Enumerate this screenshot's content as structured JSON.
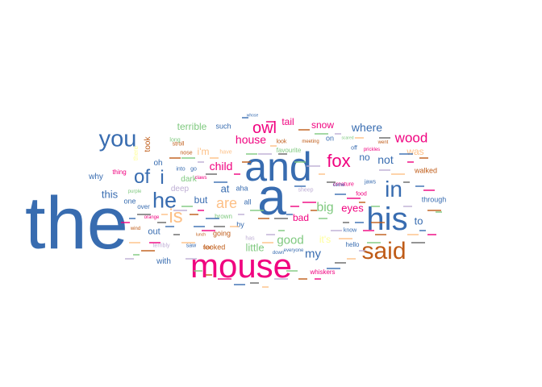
{
  "palette": {
    "blue": "#386cb0",
    "pink": "#f0027f",
    "brown": "#bf5b17",
    "green": "#7fc97f",
    "lavender": "#beaed4",
    "peach": "#fdc086",
    "yellow": "#ffff99",
    "grey": "#666666"
  },
  "words": [
    {
      "text": "the",
      "color": "blue"
    },
    {
      "text": "and",
      "color": "blue"
    },
    {
      "text": "a",
      "color": "blue"
    },
    {
      "text": "mouse",
      "color": "pink"
    },
    {
      "text": "his",
      "color": "blue"
    },
    {
      "text": "said",
      "color": "brown"
    },
    {
      "text": "you",
      "color": "blue"
    },
    {
      "text": "in",
      "color": "blue"
    },
    {
      "text": "he",
      "color": "blue"
    },
    {
      "text": "of",
      "color": "blue"
    },
    {
      "text": "i",
      "color": "blue"
    },
    {
      "text": "is",
      "color": "peach"
    },
    {
      "text": "fox",
      "color": "pink"
    },
    {
      "text": "owl",
      "color": "pink"
    },
    {
      "text": "are",
      "color": "peach"
    },
    {
      "text": "wood",
      "color": "pink"
    },
    {
      "text": "where",
      "color": "blue"
    },
    {
      "text": "house",
      "color": "pink"
    },
    {
      "text": "not",
      "color": "blue"
    },
    {
      "text": "big",
      "color": "green"
    },
    {
      "text": "good",
      "color": "green"
    },
    {
      "text": "my",
      "color": "blue"
    },
    {
      "text": "child",
      "color": "pink"
    },
    {
      "text": "terrible",
      "color": "green"
    },
    {
      "text": "tail",
      "color": "pink"
    },
    {
      "text": "snow",
      "color": "pink"
    },
    {
      "text": "little",
      "color": "green"
    },
    {
      "text": "eyes",
      "color": "pink"
    },
    {
      "text": "this",
      "color": "blue"
    },
    {
      "text": "at",
      "color": "blue"
    },
    {
      "text": "to",
      "color": "blue"
    },
    {
      "text": "was",
      "color": "peach"
    },
    {
      "text": "bad",
      "color": "pink"
    },
    {
      "text": "but",
      "color": "blue"
    },
    {
      "text": "it's",
      "color": "yellow"
    },
    {
      "text": "i'm",
      "color": "peach"
    },
    {
      "text": "out",
      "color": "blue"
    },
    {
      "text": "took",
      "color": "brown"
    },
    {
      "text": "no",
      "color": "blue"
    },
    {
      "text": "deep",
      "color": "lavender"
    },
    {
      "text": "with",
      "color": "blue"
    },
    {
      "text": "why",
      "color": "blue"
    },
    {
      "text": "such",
      "color": "blue"
    },
    {
      "text": "walked",
      "color": "brown"
    },
    {
      "text": "through",
      "color": "blue"
    },
    {
      "text": "oh",
      "color": "blue"
    },
    {
      "text": "dark",
      "color": "green"
    },
    {
      "text": "going",
      "color": "brown"
    },
    {
      "text": "looked",
      "color": "brown"
    },
    {
      "text": "one",
      "color": "blue"
    },
    {
      "text": "thing",
      "color": "pink"
    },
    {
      "text": "whiskers",
      "color": "pink"
    },
    {
      "text": "hello",
      "color": "blue"
    },
    {
      "text": "creature",
      "color": "pink"
    },
    {
      "text": "know",
      "color": "blue"
    },
    {
      "text": "food",
      "color": "pink"
    },
    {
      "text": "aha",
      "color": "blue"
    },
    {
      "text": "all",
      "color": "blue"
    },
    {
      "text": "by",
      "color": "blue"
    },
    {
      "text": "brown",
      "color": "green"
    },
    {
      "text": "favourite",
      "color": "green"
    },
    {
      "text": "off",
      "color": "blue"
    },
    {
      "text": "has",
      "color": "lavender"
    },
    {
      "text": "saw",
      "color": "blue"
    },
    {
      "text": "look",
      "color": "brown"
    },
    {
      "text": "have",
      "color": "peach"
    },
    {
      "text": "nose",
      "color": "brown"
    },
    {
      "text": "on",
      "color": "blue"
    },
    {
      "text": "jaws",
      "color": "blue"
    },
    {
      "text": "terribly",
      "color": "lavender"
    },
    {
      "text": "into",
      "color": "blue"
    },
    {
      "text": "go",
      "color": "blue"
    },
    {
      "text": "over",
      "color": "blue"
    },
    {
      "text": "long",
      "color": "green"
    },
    {
      "text": "stroll",
      "color": "brown"
    },
    {
      "text": "went",
      "color": "brown"
    },
    {
      "text": "meeting",
      "color": "brown"
    },
    {
      "text": "flew",
      "color": "brown"
    },
    {
      "text": "there",
      "color": "yellow"
    },
    {
      "text": "prickles",
      "color": "pink"
    },
    {
      "text": "whose",
      "color": "blue"
    },
    {
      "text": "sheep",
      "color": "lavender"
    },
    {
      "text": "everyone",
      "color": "blue"
    },
    {
      "text": "purple",
      "color": "green"
    },
    {
      "text": "orange",
      "color": "pink"
    },
    {
      "text": "lunch",
      "color": "brown"
    },
    {
      "text": "down",
      "color": "blue"
    },
    {
      "text": "scared",
      "color": "green"
    },
    {
      "text": "wind",
      "color": "brown"
    },
    {
      "text": "come",
      "color": "blue"
    },
    {
      "text": "claws",
      "color": "pink"
    }
  ]
}
